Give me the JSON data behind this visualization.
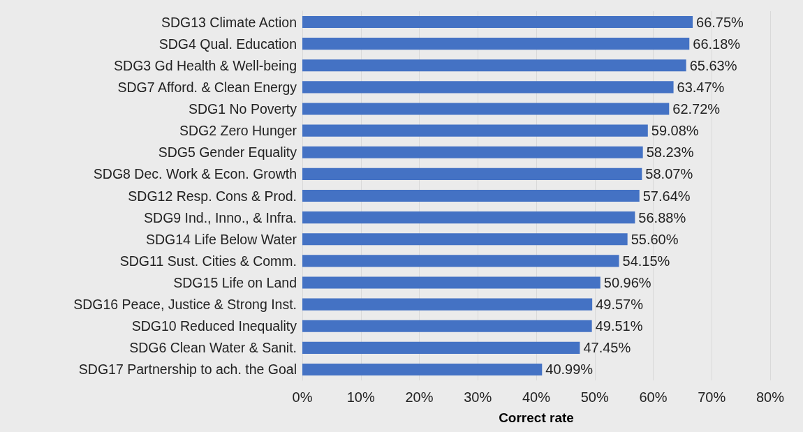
{
  "chart_data": {
    "type": "bar",
    "orientation": "horizontal",
    "xlabel": "Correct rate",
    "categories": [
      "SDG13 Climate Action",
      "SDG4 Qual. Education",
      "SDG3 Gd Health & Well-being",
      "SDG7 Afford. & Clean Energy",
      "SDG1 No Poverty",
      "SDG2 Zero Hunger",
      "SDG5 Gender Equality",
      "SDG8 Dec. Work & Econ. Growth",
      "SDG12 Resp. Cons & Prod.",
      "SDG9 Ind., Inno., & Infra.",
      "SDG14 Life Below Water",
      "SDG11 Sust. Cities & Comm.",
      "SDG15 Life on Land",
      "SDG16 Peace, Justice & Strong Inst.",
      "SDG10 Reduced Inequality",
      "SDG6 Clean Water & Sanit.",
      "SDG17 Partnership to ach. the Goal"
    ],
    "values": [
      66.75,
      66.18,
      65.63,
      63.47,
      62.72,
      59.08,
      58.23,
      58.07,
      57.64,
      56.88,
      55.6,
      54.15,
      50.96,
      49.57,
      49.51,
      47.45,
      40.99
    ],
    "value_labels": [
      "66.75%",
      "66.18%",
      "65.63%",
      "63.47%",
      "62.72%",
      "59.08%",
      "58.23%",
      "58.07%",
      "57.64%",
      "56.88%",
      "55.60%",
      "54.15%",
      "50.96%",
      "49.57%",
      "49.51%",
      "47.45%",
      "40.99%"
    ],
    "color": "#4472c4",
    "xlim": [
      0,
      80
    ],
    "xticks": [
      {
        "value": 0,
        "label": "0%"
      },
      {
        "value": 10,
        "label": "10%"
      },
      {
        "value": 20,
        "label": "20%"
      },
      {
        "value": 30,
        "label": "30%"
      },
      {
        "value": 40,
        "label": "40%"
      },
      {
        "value": 50,
        "label": "50%"
      },
      {
        "value": 60,
        "label": "60%"
      },
      {
        "value": 70,
        "label": "70%"
      },
      {
        "value": 80,
        "label": "80%"
      }
    ],
    "grid": "x"
  }
}
